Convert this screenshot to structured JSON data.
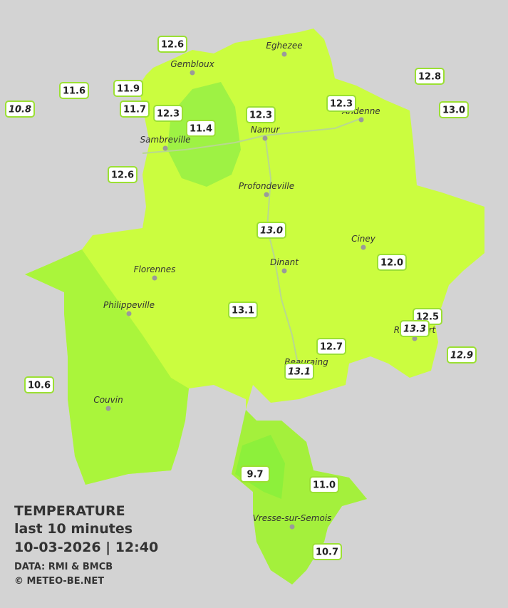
{
  "legend": {
    "title": "TEMPERATURE",
    "subtitle": "last 10 minutes",
    "timestamp": "10-03-2026  |  12:40",
    "source": "DATA: RMI & BMCB",
    "copyright": "© METEO-BE.NET"
  },
  "cities": [
    "Eghezee",
    "Gembloux",
    "Andenne",
    "Namur",
    "Sambreville",
    "Profondeville",
    "Ciney",
    "Dinant",
    "Florennes",
    "Philippeville",
    "Couvin",
    "Vresse-sur-Semois",
    "Rochefort",
    "Beauraing"
  ],
  "stations": [
    {
      "value": "12.6",
      "italic": false
    },
    {
      "value": "11.6",
      "italic": false
    },
    {
      "value": "11.9",
      "italic": false
    },
    {
      "value": "10.8",
      "italic": true
    },
    {
      "value": "11.7",
      "italic": false
    },
    {
      "value": "12.3",
      "italic": false
    },
    {
      "value": "11.4",
      "italic": false
    },
    {
      "value": "12.3",
      "italic": false
    },
    {
      "value": "12.3",
      "italic": false
    },
    {
      "value": "12.8",
      "italic": false
    },
    {
      "value": "13.0",
      "italic": false
    },
    {
      "value": "12.6",
      "italic": false
    },
    {
      "value": "13.0",
      "italic": true
    },
    {
      "value": "12.0",
      "italic": false
    },
    {
      "value": "13.1",
      "italic": false
    },
    {
      "value": "12.5",
      "italic": false
    },
    {
      "value": "13.3",
      "italic": true
    },
    {
      "value": "12.9",
      "italic": true
    },
    {
      "value": "12.7",
      "italic": false
    },
    {
      "value": "13.1",
      "italic": true
    },
    {
      "value": "10.6",
      "italic": false
    },
    {
      "value": "9.7",
      "italic": false
    },
    {
      "value": "11.0",
      "italic": false
    },
    {
      "value": "10.7",
      "italic": false
    }
  ]
}
